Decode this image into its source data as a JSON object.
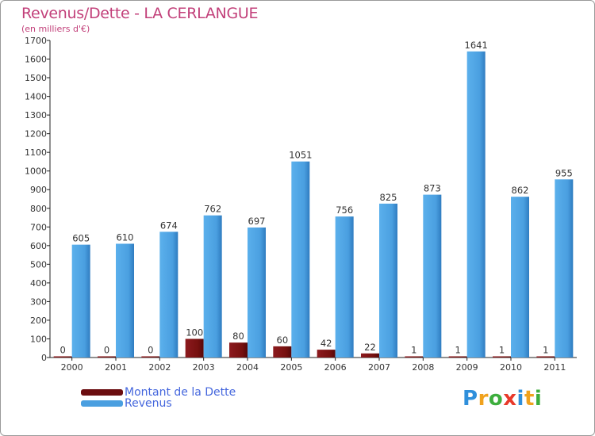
{
  "logo": {
    "text": "Proxiti",
    "letters": [
      "P",
      "r",
      "o",
      "x",
      "i",
      "t",
      "i"
    ],
    "colors": [
      "#2f8fdb",
      "#f0a21e",
      "#3dae3d",
      "#e8392a",
      "#2f8fdb",
      "#f0a21e",
      "#3dae3d"
    ]
  },
  "chart_data": {
    "type": "bar",
    "title": "Revenus/Dette - LA CERLANGUE",
    "subtitle": "(en milliers d'€)",
    "xlabel": "",
    "ylabel": "",
    "ylim": [
      0,
      1700
    ],
    "yticks": [
      0,
      100,
      200,
      300,
      400,
      500,
      600,
      700,
      800,
      900,
      1000,
      1100,
      1200,
      1300,
      1400,
      1500,
      1600,
      1700
    ],
    "grid": false,
    "legend_position": "bottom-left",
    "categories": [
      "2000",
      "2001",
      "2002",
      "2003",
      "2004",
      "2005",
      "2006",
      "2007",
      "2008",
      "2009",
      "2010",
      "2011"
    ],
    "series": [
      {
        "name": "Montant de la Dette",
        "color": "#7a0e12",
        "values": [
          0,
          0,
          0,
          100,
          80,
          60,
          42,
          22,
          1,
          1,
          1,
          1
        ]
      },
      {
        "name": "Revenus",
        "color": "#4a9fe0",
        "values": [
          605,
          610,
          674,
          762,
          697,
          1051,
          756,
          825,
          873,
          1641,
          862,
          955
        ]
      }
    ]
  }
}
